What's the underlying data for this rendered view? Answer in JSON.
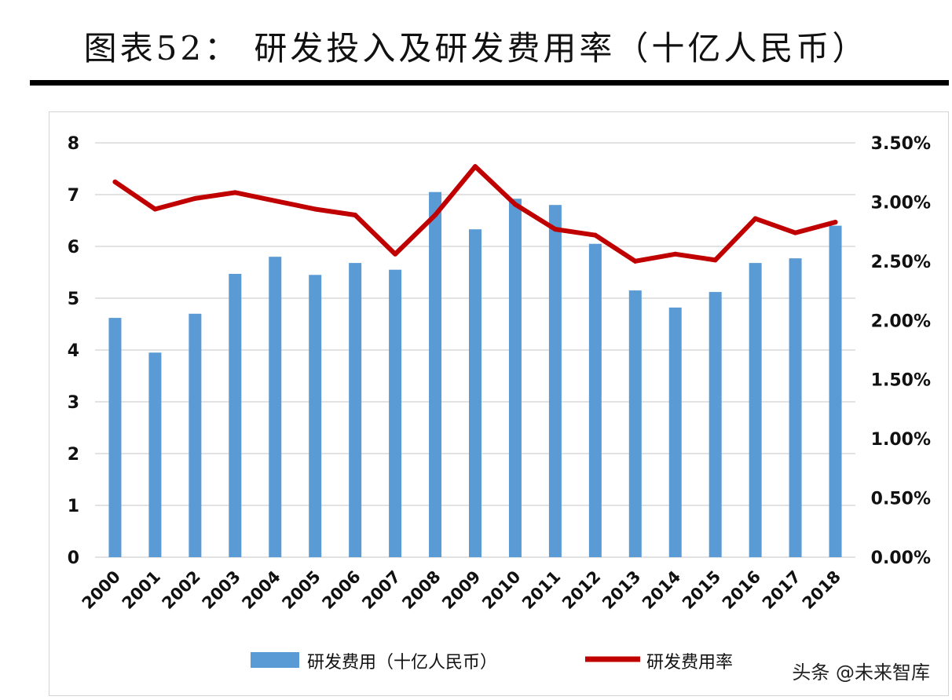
{
  "title": "图表52：  研发投入及研发费用率（十亿人民币）",
  "watermark": "头条 @未来智库",
  "colors": {
    "bar": "#5b9bd5",
    "line": "#c00000",
    "grid": "#d9d9d9"
  },
  "chart_data": {
    "type": "bar",
    "categories": [
      "2000",
      "2001",
      "2002",
      "2003",
      "2004",
      "2005",
      "2006",
      "2007",
      "2008",
      "2009",
      "2010",
      "2011",
      "2012",
      "2013",
      "2014",
      "2015",
      "2016",
      "2017",
      "2018"
    ],
    "series": [
      {
        "name": "研发费用（十亿人民币）",
        "type": "bar",
        "axis": "left",
        "values": [
          4.62,
          3.95,
          4.7,
          5.47,
          5.8,
          5.45,
          5.68,
          5.55,
          7.05,
          6.33,
          6.92,
          6.8,
          6.05,
          5.15,
          4.82,
          5.12,
          5.68,
          5.77,
          6.4
        ]
      },
      {
        "name": "研发费用率",
        "type": "line",
        "axis": "right",
        "values": [
          3.17,
          2.94,
          3.03,
          3.08,
          3.01,
          2.94,
          2.89,
          2.56,
          2.89,
          3.3,
          2.98,
          2.77,
          2.72,
          2.5,
          2.56,
          2.51,
          2.86,
          2.74,
          2.83
        ]
      }
    ],
    "y_left": {
      "ylim": [
        0,
        8
      ],
      "ticks": [
        "0",
        "1",
        "2",
        "3",
        "4",
        "5",
        "6",
        "7",
        "8"
      ]
    },
    "y_right": {
      "ylim": [
        0,
        3.5
      ],
      "unit": "%",
      "ticks": [
        "0.00%",
        "0.50%",
        "1.00%",
        "1.50%",
        "2.00%",
        "2.50%",
        "3.00%",
        "3.50%"
      ]
    },
    "grid": true,
    "legend_position": "bottom"
  }
}
